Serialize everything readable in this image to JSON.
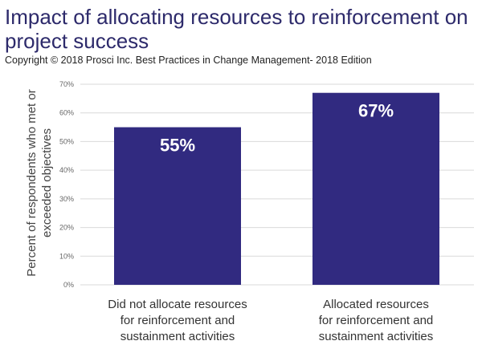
{
  "title": "Impact of allocating resources to reinforcement on project success",
  "subtitle": "Copyright © 2018 Prosci Inc. Best Practices in Change Management- 2018 Edition",
  "chart_data": {
    "type": "bar",
    "title": "Impact of allocating resources to reinforcement on project success",
    "categories": [
      [
        "Did not allocate resources",
        "for reinforcement and",
        "sustainment activities"
      ],
      [
        "Allocated resources",
        "for reinforcement and",
        "sustainment activities"
      ]
    ],
    "values": [
      55,
      67
    ],
    "data_labels": [
      "55%",
      "67%"
    ],
    "xlabel": "",
    "ylabel": [
      "Percent of respondents who met or",
      "exceeded objectives"
    ],
    "ylim": [
      0,
      70
    ],
    "yticks": [
      "0%",
      "10%",
      "20%",
      "30%",
      "40%",
      "50%",
      "60%",
      "70%"
    ],
    "grid": true,
    "bar_color": "#312a80"
  }
}
